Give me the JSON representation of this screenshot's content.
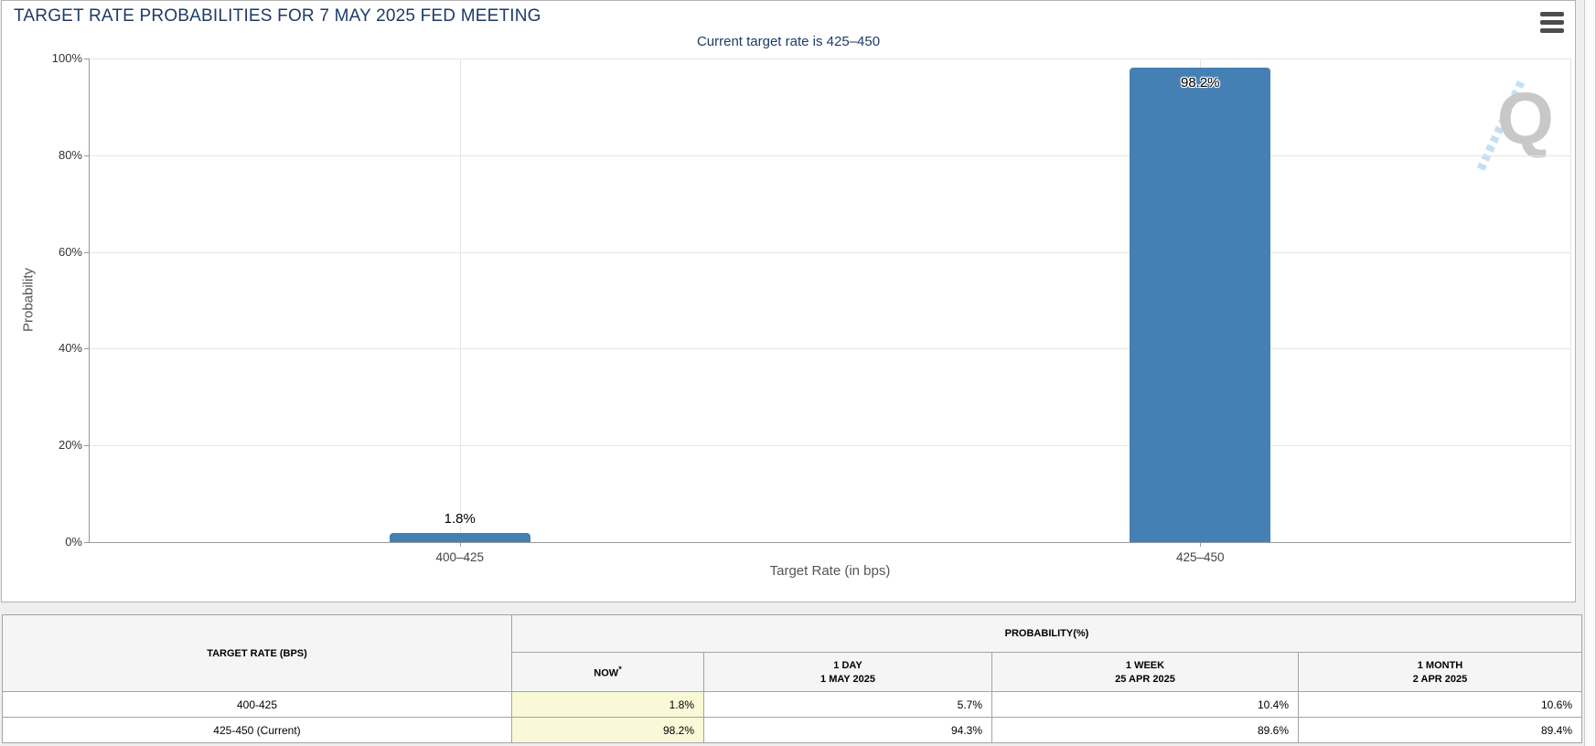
{
  "colors": {
    "navy": "#1f3a68",
    "bar": "#4480b4",
    "highlight": "#f9f9d8",
    "header_bg": "#f5f5f5",
    "grid": "#e5e5e5"
  },
  "chart_data": {
    "type": "bar",
    "title": "TARGET RATE PROBABILITIES FOR 7 MAY 2025 FED MEETING",
    "subtitle": "Current target rate is 425–450",
    "categories": [
      "400–425",
      "425–450"
    ],
    "values": [
      1.8,
      98.2
    ],
    "value_labels": [
      "1.8%",
      "98.2%"
    ],
    "xlabel": "Target Rate (in bps)",
    "ylabel": "Probability",
    "ylim": [
      0,
      100
    ],
    "yticks": [
      "0%",
      "20%",
      "40%",
      "60%",
      "80%",
      "100%"
    ],
    "grid": true,
    "legend": "none",
    "bar_color": "#4480b4",
    "watermark": "Q"
  },
  "menu": {
    "icon": "hamburger-icon"
  },
  "table": {
    "col1_header": "TARGET RATE (BPS)",
    "group_header": "PROBABILITY(%)",
    "columns": [
      {
        "label": "NOW",
        "sup": "*",
        "sub": ""
      },
      {
        "label": "1 DAY",
        "sub": "1 MAY 2025"
      },
      {
        "label": "1 WEEK",
        "sub": "25 APR 2025"
      },
      {
        "label": "1 MONTH",
        "sub": "2 APR 2025"
      }
    ],
    "rows": [
      {
        "rate": "400-425",
        "now": "1.8%",
        "day": "5.7%",
        "week": "10.4%",
        "month": "10.6%"
      },
      {
        "rate": "425-450 (Current)",
        "now": "98.2%",
        "day": "94.3%",
        "week": "89.6%",
        "month": "89.4%"
      }
    ]
  }
}
